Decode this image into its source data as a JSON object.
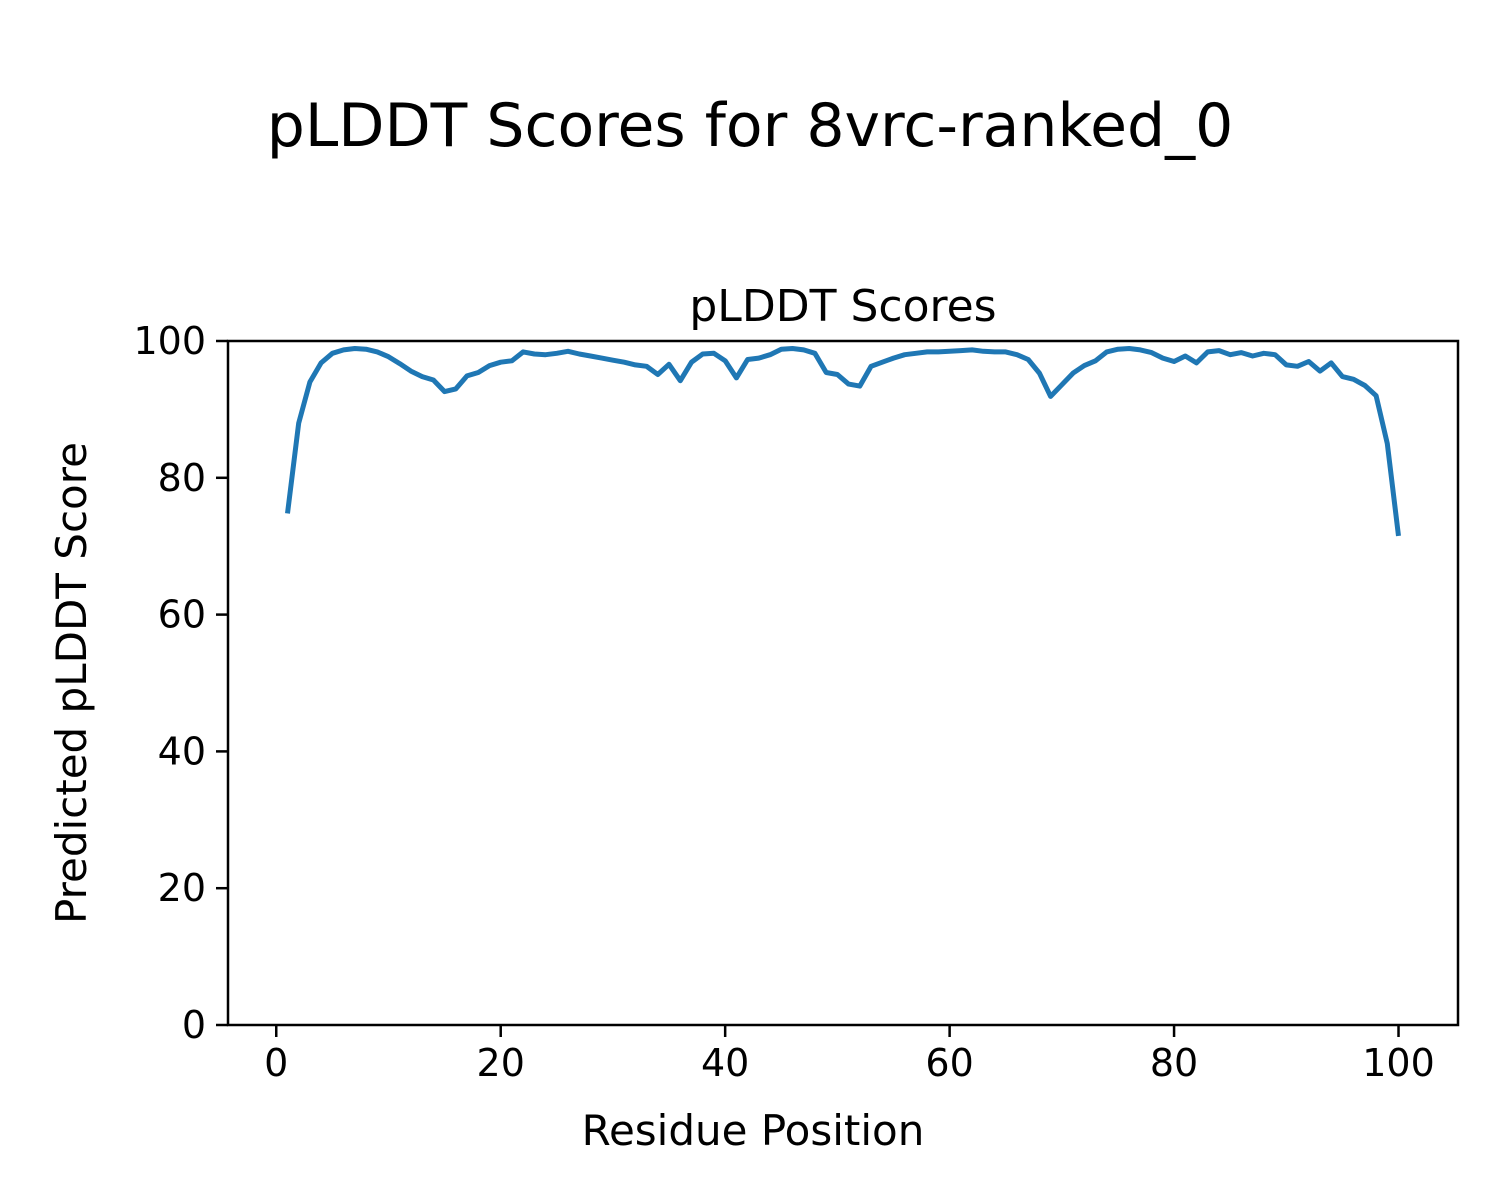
{
  "chart_data": {
    "type": "line",
    "suptitle": "pLDDT Scores for 8vrc-ranked_0",
    "title": "pLDDT Scores",
    "xlabel": "Residue Position",
    "ylabel": "Predicted pLDDT Score",
    "xlim": [
      -4.3,
      105.3
    ],
    "ylim": [
      0,
      100
    ],
    "x_ticks": [
      0,
      20,
      40,
      60,
      80,
      100
    ],
    "y_ticks": [
      0,
      20,
      40,
      60,
      80,
      100
    ],
    "grid": false,
    "legend": "none",
    "line_color": "#1f77b4",
    "axis_color": "#000000",
    "series": [
      {
        "name": "pLDDT",
        "x": [
          1,
          2,
          3,
          4,
          5,
          6,
          7,
          8,
          9,
          10,
          11,
          12,
          13,
          14,
          15,
          16,
          17,
          18,
          19,
          20,
          21,
          22,
          23,
          24,
          25,
          26,
          27,
          28,
          29,
          30,
          31,
          32,
          33,
          34,
          35,
          36,
          37,
          38,
          39,
          40,
          41,
          42,
          43,
          44,
          45,
          46,
          47,
          48,
          49,
          50,
          51,
          52,
          53,
          54,
          55,
          56,
          57,
          58,
          59,
          60,
          61,
          62,
          63,
          64,
          65,
          66,
          67,
          68,
          69,
          70,
          71,
          72,
          73,
          74,
          75,
          76,
          77,
          78,
          79,
          80,
          81,
          82,
          83,
          84,
          85,
          86,
          87,
          88,
          89,
          90,
          91,
          92,
          93,
          94,
          95,
          96,
          97,
          98,
          99,
          100
        ],
        "y": [
          74.8,
          88.0,
          94.0,
          96.8,
          98.2,
          98.7,
          98.9,
          98.8,
          98.4,
          97.7,
          96.7,
          95.6,
          94.8,
          94.3,
          92.6,
          93.0,
          94.9,
          95.4,
          96.4,
          96.9,
          97.1,
          98.4,
          98.1,
          98.0,
          98.2,
          98.5,
          98.1,
          97.8,
          97.5,
          97.2,
          96.9,
          96.5,
          96.3,
          95.1,
          96.6,
          94.2,
          96.9,
          98.1,
          98.2,
          97.1,
          94.6,
          97.3,
          97.5,
          98.0,
          98.8,
          98.9,
          98.7,
          98.2,
          95.4,
          95.1,
          93.7,
          93.4,
          96.3,
          96.9,
          97.5,
          98.0,
          98.2,
          98.4,
          98.4,
          98.5,
          98.6,
          98.7,
          98.5,
          98.4,
          98.4,
          98.0,
          97.3,
          95.3,
          91.9,
          93.6,
          95.3,
          96.4,
          97.1,
          98.4,
          98.8,
          98.9,
          98.7,
          98.3,
          97.5,
          97.0,
          97.8,
          96.8,
          98.4,
          98.6,
          98.0,
          98.3,
          97.8,
          98.2,
          98.0,
          96.5,
          96.3,
          97.0,
          95.6,
          96.8,
          94.8,
          94.4,
          93.5,
          92.0,
          85.0,
          71.5
        ]
      }
    ]
  }
}
